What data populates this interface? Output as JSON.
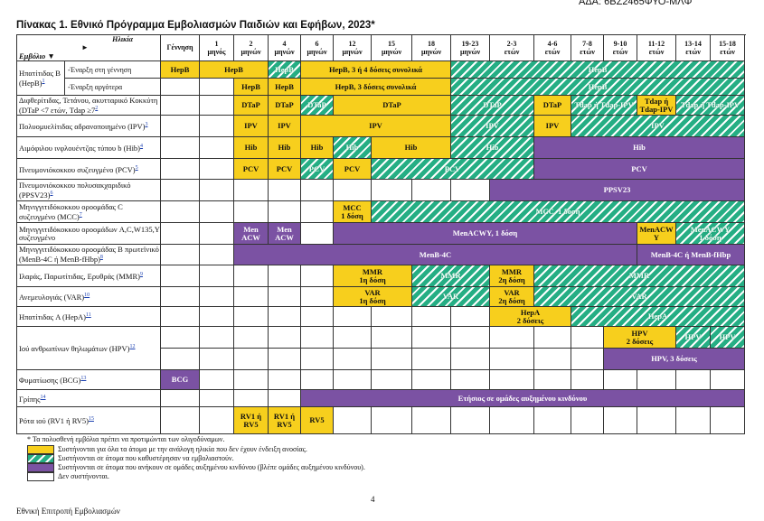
{
  "ada": "ΑΔΑ: 6ΒΖ2465ΦΥΟ-ΜΛΦ",
  "title": "Πίνακας 1. Εθνικό Πρόγραμμα Εμβολιασμών Παιδιών και Εφήβων, 2023*",
  "corner": {
    "age": "Ηλικία",
    "age_arrow": "►",
    "vaccine": "Εμβόλιο ▼"
  },
  "columns": [
    [
      "Γέννηση"
    ],
    [
      "1",
      "μηνός"
    ],
    [
      "2",
      "μηνών"
    ],
    [
      "4",
      "μηνών"
    ],
    [
      "6",
      "μηνών"
    ],
    [
      "12",
      "μηνών"
    ],
    [
      "15",
      "μηνών"
    ],
    [
      "18",
      "μηνών"
    ],
    [
      "19-23",
      "μηνών"
    ],
    [
      "2-3",
      "ετών"
    ],
    [
      "4-6",
      "ετών"
    ],
    [
      "7-8",
      "ετών"
    ],
    [
      "9-10",
      "ετών"
    ],
    [
      "11-12",
      "ετών"
    ],
    [
      "13-14",
      "ετών"
    ],
    [
      "15-18",
      "ετών"
    ]
  ],
  "fills": {
    "yellow": "#f7cf1d",
    "hatch": "#25ae84",
    "purple": "#7b52a3"
  },
  "rows": [
    {
      "name": "Ηπατίτιδας B (HepB)",
      "note": "1",
      "lines": [
        {
          "label": "-Έναρξη στη γέννηση",
          "cells": [
            {
              "span": 1,
              "fill": "yellow",
              "text": "HepB"
            },
            {
              "span": 2,
              "fill": "yellow",
              "text": "HepB"
            },
            {
              "span": 1,
              "fill": "hatch",
              "text": "HepB"
            },
            {
              "span": 4,
              "fill": "yellow",
              "text": "HepB, 3 ή 4 δόσεις συνολικά"
            },
            {
              "span": 8,
              "fill": "hatch",
              "text": "HepB"
            }
          ]
        },
        {
          "label": "-Έναρξη αργότερα",
          "cells": [
            {
              "span": 1
            },
            {
              "span": 1
            },
            {
              "span": 1,
              "fill": "yellow",
              "text": "HepB"
            },
            {
              "span": 1,
              "fill": "yellow",
              "text": "HepB"
            },
            {
              "span": 4,
              "fill": "yellow",
              "text": "HepB, 3 δόσεις συνολικά"
            },
            {
              "span": 8,
              "fill": "hatch",
              "text": "HepB"
            }
          ]
        }
      ]
    },
    {
      "name": "Διφθερίτιδας, Τετάνου, ακυτταρικό Κοκκύτη (DTaP <7 ετών, Tdap ≥7",
      "note": "2",
      "lines": [
        {
          "cells": [
            {
              "span": 1
            },
            {
              "span": 1
            },
            {
              "span": 1,
              "fill": "yellow",
              "text": "DTaP"
            },
            {
              "span": 1,
              "fill": "yellow",
              "text": "DTaP"
            },
            {
              "span": 1,
              "fill": "hatch",
              "text": "DTaP"
            },
            {
              "span": 3,
              "fill": "yellow",
              "text": "DTaP"
            },
            {
              "span": 2,
              "fill": "hatch",
              "text": "DTaP"
            },
            {
              "span": 1,
              "fill": "yellow",
              "text": "DTaP"
            },
            {
              "span": 2,
              "fill": "hatch",
              "text": "Tdap ή Tdap-IPV"
            },
            {
              "span": 1,
              "fill": "yellow",
              "text": "Tdap ή\nTdap-IPV"
            },
            {
              "span": 2,
              "fill": "hatch",
              "text": "Tdap ή Tdap-IPV"
            }
          ]
        }
      ]
    },
    {
      "name": "Πολυομυελίτιδας αδρανοποιημένο (IPV)",
      "note": "3",
      "lines": [
        {
          "cells": [
            {
              "span": 1
            },
            {
              "span": 1
            },
            {
              "span": 1,
              "fill": "yellow",
              "text": "IPV"
            },
            {
              "span": 1,
              "fill": "yellow",
              "text": "IPV"
            },
            {
              "span": 4,
              "fill": "yellow",
              "text": "IPV"
            },
            {
              "span": 2,
              "fill": "hatch",
              "text": "IPV"
            },
            {
              "span": 1,
              "fill": "yellow",
              "text": "IPV"
            },
            {
              "span": 5,
              "fill": "hatch",
              "text": "IPV"
            }
          ]
        }
      ]
    },
    {
      "name": "Αιμόφιλου ινφλουέντζας τύπου b (Hib)",
      "note": "4",
      "lines": [
        {
          "cells": [
            {
              "span": 1
            },
            {
              "span": 1
            },
            {
              "span": 1,
              "fill": "yellow",
              "text": "Hib"
            },
            {
              "span": 1,
              "fill": "yellow",
              "text": "Hib"
            },
            {
              "span": 1,
              "fill": "yellow",
              "text": "Hib"
            },
            {
              "span": 1,
              "fill": "hatch",
              "text": "Hib"
            },
            {
              "span": 2,
              "fill": "yellow",
              "text": "Hib"
            },
            {
              "span": 2,
              "fill": "hatch",
              "text": "Hib"
            },
            {
              "span": 6,
              "fill": "purple",
              "text": "Hib"
            }
          ]
        }
      ]
    },
    {
      "name": "Πνευμονιόκοκκου συζευγμένο (PCV)",
      "note": "5",
      "lines": [
        {
          "cells": [
            {
              "span": 1
            },
            {
              "span": 1
            },
            {
              "span": 1,
              "fill": "yellow",
              "text": "PCV"
            },
            {
              "span": 1,
              "fill": "yellow",
              "text": "PCV"
            },
            {
              "span": 1,
              "fill": "hatch",
              "text": "PCV"
            },
            {
              "span": 1,
              "fill": "yellow",
              "text": "PCV"
            },
            {
              "span": 4,
              "fill": "hatch",
              "text": "PCV"
            },
            {
              "span": 6,
              "fill": "purple",
              "text": "PCV"
            }
          ]
        }
      ]
    },
    {
      "name": "Πνευμονιόκοκκου πολυσακχαριδικό (PPSV23)",
      "note": "6",
      "lines": [
        {
          "cells": [
            {
              "span": 1
            },
            {
              "span": 1
            },
            {
              "span": 1
            },
            {
              "span": 1
            },
            {
              "span": 1
            },
            {
              "span": 1
            },
            {
              "span": 1
            },
            {
              "span": 1
            },
            {
              "span": 1
            },
            {
              "span": 7,
              "fill": "purple",
              "text": "PPSV23"
            }
          ]
        }
      ]
    },
    {
      "name": "Μηνιγγιτιδόκοκκου οροομάδας C συζευγμένο (MCC)",
      "note": "7",
      "lines": [
        {
          "cells": [
            {
              "span": 1
            },
            {
              "span": 1
            },
            {
              "span": 1
            },
            {
              "span": 1
            },
            {
              "span": 1
            },
            {
              "span": 1,
              "fill": "yellow",
              "text": "MCC\n1 δόση"
            },
            {
              "span": 10,
              "fill": "hatch",
              "text": "MCC, 1 δόση"
            }
          ]
        }
      ]
    },
    {
      "name": "Μηνιγγιτιδόκοκκου οροομάδων A,C,W135,Y συζευγμένο",
      "lines": [
        {
          "cells": [
            {
              "span": 1
            },
            {
              "span": 1
            },
            {
              "span": 1,
              "fill": "purple",
              "text": "Men\nACW"
            },
            {
              "span": 1,
              "fill": "purple",
              "text": "Men\nACW"
            },
            {
              "span": 1
            },
            {
              "span": 8,
              "fill": "purple",
              "text": "MenACWY, 1 δόση"
            },
            {
              "span": 1,
              "fill": "yellow",
              "text": "MenACW\nY"
            },
            {
              "span": 2,
              "fill": "hatch",
              "text": "MenACWY\n1 δόση"
            }
          ]
        }
      ]
    },
    {
      "name": "Μηνιγγιτιδόκοκκου οροομάδας B πρωτεϊνικό (MenB-4C ή MenB-fHbp)",
      "note": "8",
      "lines": [
        {
          "cells": [
            {
              "span": 1
            },
            {
              "span": 1
            },
            {
              "span": 11,
              "fill": "purple",
              "text": "MenB-4C"
            },
            {
              "span": 3,
              "fill": "purple",
              "text": "MenB-4C ή MenB-fHbp"
            }
          ]
        }
      ]
    },
    {
      "name": "Ιλαράς, Παρωτίτιδας, Ερυθράς (MMR)",
      "note": "9",
      "lines": [
        {
          "cells": [
            {
              "span": 1
            },
            {
              "span": 1
            },
            {
              "span": 1
            },
            {
              "span": 1
            },
            {
              "span": 1
            },
            {
              "span": 2,
              "fill": "yellow",
              "text": "MMR\n1η δόση"
            },
            {
              "span": 2,
              "fill": "hatch",
              "text": "MMR"
            },
            {
              "span": 1,
              "fill": "yellow",
              "text": "MMR\n2η δόση"
            },
            {
              "span": 6,
              "fill": "hatch",
              "text": "MMR"
            }
          ]
        }
      ]
    },
    {
      "name": "Ανεμευλογιάς (VAR)",
      "note": "10",
      "lines": [
        {
          "cells": [
            {
              "span": 1
            },
            {
              "span": 1
            },
            {
              "span": 1
            },
            {
              "span": 1
            },
            {
              "span": 1
            },
            {
              "span": 2,
              "fill": "yellow",
              "text": "VAR\n1η δόση"
            },
            {
              "span": 2,
              "fill": "hatch",
              "text": "VAR"
            },
            {
              "span": 1,
              "fill": "yellow",
              "text": "VAR\n2η δόση"
            },
            {
              "span": 6,
              "fill": "hatch",
              "text": "VAR"
            }
          ]
        }
      ]
    },
    {
      "name": "Ηπατίτιδας A (HepA)",
      "note": "11",
      "lines": [
        {
          "cells": [
            {
              "span": 1
            },
            {
              "span": 1
            },
            {
              "span": 1
            },
            {
              "span": 1
            },
            {
              "span": 1
            },
            {
              "span": 1
            },
            {
              "span": 1
            },
            {
              "span": 1
            },
            {
              "span": 1
            },
            {
              "span": 2,
              "fill": "yellow",
              "text": "HepA\n2 δόσεις"
            },
            {
              "span": 5,
              "fill": "hatch",
              "text": "HepA"
            }
          ]
        }
      ]
    },
    {
      "name": "Ιού ανθρωπίνων θηλωμάτων (HPV)",
      "note": "12",
      "lines": [
        {
          "cells": [
            {
              "span": 1
            },
            {
              "span": 1
            },
            {
              "span": 1
            },
            {
              "span": 1
            },
            {
              "span": 1
            },
            {
              "span": 1
            },
            {
              "span": 1
            },
            {
              "span": 1
            },
            {
              "span": 1
            },
            {
              "span": 1
            },
            {
              "span": 1
            },
            {
              "span": 1
            },
            {
              "span": 2,
              "fill": "yellow",
              "text": "HPV\n2 δόσεις"
            },
            {
              "span": 1,
              "fill": "hatch",
              "text": "HPV"
            },
            {
              "span": 1,
              "fill": "hatch",
              "text": "HPV"
            }
          ]
        },
        {
          "cells": [
            {
              "span": 1
            },
            {
              "span": 1
            },
            {
              "span": 1
            },
            {
              "span": 1
            },
            {
              "span": 1
            },
            {
              "span": 1
            },
            {
              "span": 1
            },
            {
              "span": 1
            },
            {
              "span": 1
            },
            {
              "span": 1
            },
            {
              "span": 1
            },
            {
              "span": 1
            },
            {
              "span": 4,
              "fill": "purple",
              "text": "HPV, 3 δόσεις"
            }
          ]
        }
      ]
    },
    {
      "name": "Φυματίωσης (BCG)",
      "note": "13",
      "lines": [
        {
          "cells": [
            {
              "span": 1,
              "fill": "purple",
              "text": "BCG"
            },
            {
              "span": 1
            },
            {
              "span": 1
            },
            {
              "span": 1
            },
            {
              "span": 1
            },
            {
              "span": 1
            },
            {
              "span": 1
            },
            {
              "span": 1
            },
            {
              "span": 1
            },
            {
              "span": 1
            },
            {
              "span": 1
            },
            {
              "span": 1
            },
            {
              "span": 1
            },
            {
              "span": 1
            },
            {
              "span": 1
            },
            {
              "span": 1
            }
          ]
        }
      ]
    },
    {
      "name": "Γρίπης",
      "note": "14",
      "lines": [
        {
          "cells": [
            {
              "span": 1
            },
            {
              "span": 1
            },
            {
              "span": 1
            },
            {
              "span": 1
            },
            {
              "span": 12,
              "fill": "purple",
              "text": "Ετήσιος σε ομάδες αυξημένου κινδύνου"
            }
          ]
        }
      ]
    },
    {
      "name": "Ρότα ιού (RV1 ή RV5)",
      "note": "15",
      "lines": [
        {
          "cells": [
            {
              "span": 1
            },
            {
              "span": 1
            },
            {
              "span": 1,
              "fill": "yellow",
              "text": "RV1 ή\nRV5"
            },
            {
              "span": 1,
              "fill": "yellow",
              "text": "RV1 ή\nRV5"
            },
            {
              "span": 1,
              "fill": "yellow",
              "text": "RV5"
            },
            {
              "span": 1
            },
            {
              "span": 1
            },
            {
              "span": 1
            },
            {
              "span": 1
            },
            {
              "span": 1
            },
            {
              "span": 1
            },
            {
              "span": 1
            },
            {
              "span": 1
            },
            {
              "span": 1
            },
            {
              "span": 1
            },
            {
              "span": 1
            }
          ]
        }
      ]
    }
  ],
  "footnote": "* Τα πολυσθενή εμβόλια πρέπει να προτιμώνται των ολιγοδύναμων.",
  "legend": [
    {
      "fill": "yellow",
      "text": "Συστήνονται για όλα τα άτομα με την ανάλογη ηλικία που δεν έχουν ένδειξη ανοσίας."
    },
    {
      "fill": "hatch",
      "text": "Συστήνονται σε άτομα που καθυστέρησαν να εμβολιαστούν."
    },
    {
      "fill": "purple",
      "text": "Συστήνονται σε άτομα που ανήκουν σε ομάδες αυξημένου κινδύνου (βλέπε ομάδες αυξημένου κινδύνου)."
    },
    {
      "text": "Δεν συστήνονται."
    }
  ],
  "page": "4",
  "footer": "Εθνική Επιτροπή Εμβολιασμών"
}
